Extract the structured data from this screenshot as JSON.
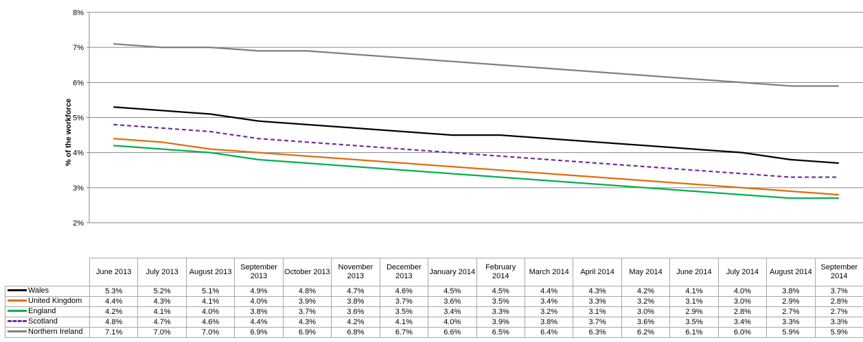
{
  "chart_data": {
    "type": "line",
    "ylabel": "% of the workforce",
    "ylim": [
      2,
      8
    ],
    "y_ticks": [
      "2%",
      "3%",
      "4%",
      "5%",
      "6%",
      "7%",
      "8%"
    ],
    "grid": true,
    "categories": [
      "June 2013",
      "July 2013",
      "August 2013",
      "September 2013",
      "October 2013",
      "November 2013",
      "December 2013",
      "January 2014",
      "February 2014",
      "March 2014",
      "April 2014",
      "May 2014",
      "June 2014",
      "July 2014",
      "August 2014",
      "September 2014"
    ],
    "series": [
      {
        "name": "Wales",
        "color": "#000000",
        "dash": "solid",
        "values": [
          5.3,
          5.2,
          5.1,
          4.9,
          4.8,
          4.7,
          4.6,
          4.5,
          4.5,
          4.4,
          4.3,
          4.2,
          4.1,
          4.0,
          3.8,
          3.7
        ],
        "labels": [
          "5.3%",
          "5.2%",
          "5.1%",
          "4.9%",
          "4.8%",
          "4.7%",
          "4.6%",
          "4.5%",
          "4.5%",
          "4.4%",
          "4.3%",
          "4.2%",
          "4.1%",
          "4.0%",
          "3.8%",
          "3.7%"
        ]
      },
      {
        "name": "United Kingdom",
        "color": "#e36c0a",
        "dash": "solid",
        "values": [
          4.4,
          4.3,
          4.1,
          4.0,
          3.9,
          3.8,
          3.7,
          3.6,
          3.5,
          3.4,
          3.3,
          3.2,
          3.1,
          3.0,
          2.9,
          2.8
        ],
        "labels": [
          "4.4%",
          "4.3%",
          "4.1%",
          "4.0%",
          "3.9%",
          "3.8%",
          "3.7%",
          "3.6%",
          "3.5%",
          "3.4%",
          "3.3%",
          "3.2%",
          "3.1%",
          "3.0%",
          "2.9%",
          "2.8%"
        ]
      },
      {
        "name": "England",
        "color": "#00b050",
        "dash": "solid",
        "values": [
          4.2,
          4.1,
          4.0,
          3.8,
          3.7,
          3.6,
          3.5,
          3.4,
          3.3,
          3.2,
          3.1,
          3.0,
          2.9,
          2.8,
          2.7,
          2.7
        ],
        "labels": [
          "4.2%",
          "4.1%",
          "4.0%",
          "3.8%",
          "3.7%",
          "3.6%",
          "3.5%",
          "3.4%",
          "3.3%",
          "3.2%",
          "3.1%",
          "3.0%",
          "2.9%",
          "2.8%",
          "2.7%",
          "2.7%"
        ]
      },
      {
        "name": "Scotland",
        "color": "#7030a0",
        "dash": "dashed",
        "values": [
          4.8,
          4.7,
          4.6,
          4.4,
          4.3,
          4.2,
          4.1,
          4.0,
          3.9,
          3.8,
          3.7,
          3.6,
          3.5,
          3.4,
          3.3,
          3.3
        ],
        "labels": [
          "4.8%",
          "4.7%",
          "4.6%",
          "4.4%",
          "4.3%",
          "4.2%",
          "4.1%",
          "4.0%",
          "3.9%",
          "3.8%",
          "3.7%",
          "3.6%",
          "3.5%",
          "3.4%",
          "3.3%",
          "3.3%"
        ]
      },
      {
        "name": "Northern Ireland",
        "color": "#7f7f7f",
        "dash": "solid",
        "values": [
          7.1,
          7.0,
          7.0,
          6.9,
          6.9,
          6.8,
          6.7,
          6.6,
          6.5,
          6.4,
          6.3,
          6.2,
          6.1,
          6.0,
          5.9,
          5.9
        ],
        "labels": [
          "7.1%",
          "7.0%",
          "7.0%",
          "6.9%",
          "6.9%",
          "6.8%",
          "6.7%",
          "6.6%",
          "6.5%",
          "6.4%",
          "6.3%",
          "6.2%",
          "6.1%",
          "6.0%",
          "5.9%",
          "5.9%"
        ]
      }
    ]
  }
}
